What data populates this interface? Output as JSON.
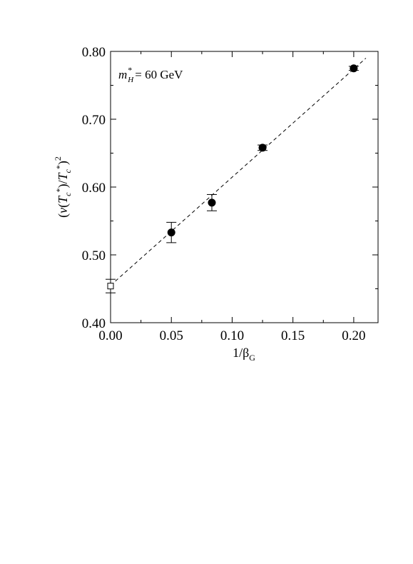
{
  "chart_data": {
    "type": "scatter",
    "title": "",
    "xlabel": "1/β_G",
    "xlabel_main": "1/β",
    "xlabel_sub": "G",
    "ylabel": "(v(T_c*)/T_c*)^2",
    "xlim": [
      0.0,
      0.22
    ],
    "ylim": [
      0.4,
      0.8
    ],
    "x_ticks": [
      "0.00",
      "0.05",
      "0.10",
      "0.15",
      "0.20"
    ],
    "y_ticks": [
      "0.40",
      "0.50",
      "0.60",
      "0.70",
      "0.80"
    ],
    "annotation": "m_H* = 60 GeV",
    "annotation_value": "= 60 GeV",
    "grid": false,
    "series": [
      {
        "marker": "filled-circle",
        "x": [
          0.05,
          0.0833,
          0.125,
          0.2
        ],
        "y": [
          0.533,
          0.577,
          0.658,
          0.775
        ],
        "yerr": [
          0.015,
          0.012,
          0.004,
          0.003
        ]
      },
      {
        "marker": "open-square",
        "x": [
          0.0
        ],
        "y": [
          0.454
        ],
        "yerr": [
          0.01
        ]
      }
    ],
    "fit_line": {
      "style": "dashed",
      "x": [
        0.0,
        0.21
      ],
      "y": [
        0.455,
        0.79
      ]
    }
  }
}
